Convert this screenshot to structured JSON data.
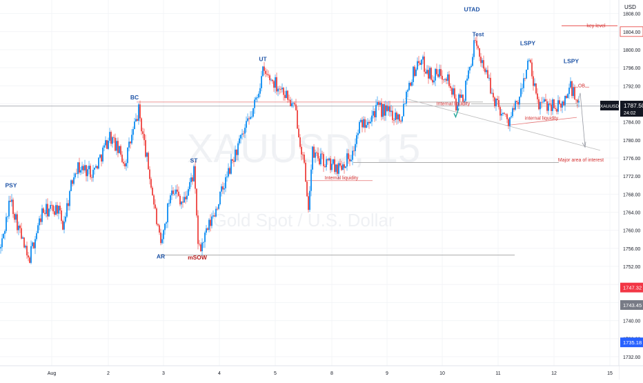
{
  "watermark": {
    "symbol": "XAUUSD, 15",
    "subtitle": "Gold Spot / U.S. Dollar"
  },
  "price_axis": {
    "currency": "USD",
    "ticks": [
      "1808.00",
      "1804.00",
      "1800.00",
      "1796.00",
      "1792.00",
      "1788.00",
      "1784.00",
      "1780.00",
      "1776.00",
      "1772.00",
      "1768.00",
      "1764.00",
      "1760.00",
      "1756.00",
      "1752.00",
      "1748.00",
      "1744.00",
      "1740.00",
      "1736.00",
      "1732.00"
    ],
    "current_label": {
      "symbol": "XAUUSD",
      "price": "1787.50",
      "countdown": "24:02"
    },
    "markers": [
      {
        "value": "1804.00",
        "color": "#e53935",
        "style": "outline"
      },
      {
        "value": "1747.32",
        "color": "#f23645",
        "style": "filled"
      },
      {
        "value": "1743.45",
        "color": "#787b86",
        "style": "filled"
      },
      {
        "value": "1735.18",
        "color": "#2962ff",
        "style": "filled"
      }
    ]
  },
  "time_axis": {
    "ticks": [
      "Aug",
      "2",
      "3",
      "4",
      "5",
      "8",
      "9",
      "10",
      "11",
      "12",
      "15"
    ]
  },
  "chart_data": {
    "type": "candlestick",
    "instrument": "XAUUSD",
    "timeframe": "15",
    "yrange": [
      1730,
      1811
    ],
    "colors": {
      "up": "#2196f3",
      "down": "#ef5350"
    },
    "key_points": [
      {
        "t": 0,
        "price": 1756
      },
      {
        "t": 14,
        "price": 1767
      },
      {
        "t": 40,
        "price": 1753
      },
      {
        "t": 60,
        "price": 1764
      },
      {
        "t": 82,
        "price": 1765
      },
      {
        "t": 90,
        "price": 1761
      },
      {
        "t": 108,
        "price": 1774
      },
      {
        "t": 135,
        "price": 1773
      },
      {
        "t": 158,
        "price": 1781
      },
      {
        "t": 180,
        "price": 1775
      },
      {
        "t": 200,
        "price": 1786.5
      },
      {
        "t": 216,
        "price": 1772
      },
      {
        "t": 232,
        "price": 1756
      },
      {
        "t": 248,
        "price": 1770
      },
      {
        "t": 265,
        "price": 1766
      },
      {
        "t": 280,
        "price": 1773
      },
      {
        "t": 287,
        "price": 1755
      },
      {
        "t": 310,
        "price": 1764
      },
      {
        "t": 340,
        "price": 1777
      },
      {
        "t": 365,
        "price": 1786
      },
      {
        "t": 380,
        "price": 1795
      },
      {
        "t": 410,
        "price": 1791
      },
      {
        "t": 428,
        "price": 1786
      },
      {
        "t": 440,
        "price": 1774
      },
      {
        "t": 445,
        "price": 1764
      },
      {
        "t": 452,
        "price": 1777
      },
      {
        "t": 470,
        "price": 1775
      },
      {
        "t": 490,
        "price": 1774
      },
      {
        "t": 510,
        "price": 1777
      },
      {
        "t": 520,
        "price": 1783
      },
      {
        "t": 545,
        "price": 1787
      },
      {
        "t": 565,
        "price": 1786
      },
      {
        "t": 580,
        "price": 1785
      },
      {
        "t": 590,
        "price": 1792
      },
      {
        "t": 607,
        "price": 1798
      },
      {
        "t": 625,
        "price": 1794
      },
      {
        "t": 645,
        "price": 1795
      },
      {
        "t": 660,
        "price": 1788
      },
      {
        "t": 672,
        "price": 1790
      },
      {
        "t": 686,
        "price": 1801
      },
      {
        "t": 700,
        "price": 1797
      },
      {
        "t": 712,
        "price": 1790
      },
      {
        "t": 735,
        "price": 1784
      },
      {
        "t": 752,
        "price": 1789
      },
      {
        "t": 765,
        "price": 1798
      },
      {
        "t": 778,
        "price": 1788
      },
      {
        "t": 798,
        "price": 1788
      },
      {
        "t": 812,
        "price": 1787
      },
      {
        "t": 826,
        "price": 1792
      },
      {
        "t": 838,
        "price": 1787
      }
    ]
  },
  "annotations": {
    "wyckoff_labels": [
      {
        "text": "PSY",
        "t": 16,
        "price": 1769.5,
        "color": "#1e53a6"
      },
      {
        "text": "BC",
        "t": 195,
        "price": 1789.0,
        "color": "#1e53a6"
      },
      {
        "text": "AR",
        "t": 233,
        "price": 1753.8,
        "color": "#1e53a6"
      },
      {
        "text": "ST",
        "t": 281,
        "price": 1775.0,
        "color": "#1e53a6"
      },
      {
        "text": "mSOW",
        "t": 286,
        "price": 1753.5,
        "color": "#b71c1c"
      },
      {
        "text": "UT",
        "t": 381,
        "price": 1797.5,
        "color": "#1e53a6"
      },
      {
        "text": "UTAD",
        "t": 684,
        "price": 1808.5,
        "color": "#1e53a6"
      },
      {
        "text": "Test",
        "t": 693,
        "price": 1803.0,
        "color": "#1e53a6"
      },
      {
        "text": "LSPY",
        "t": 765,
        "price": 1801.0,
        "color": "#1e53a6"
      },
      {
        "text": "LSPY",
        "t": 828,
        "price": 1797.0,
        "color": "#1e53a6"
      }
    ],
    "texts": [
      {
        "text": "key level",
        "t": 864,
        "price": 1805.0,
        "color": "#d32f2f"
      },
      {
        "text": "OB",
        "t": 843,
        "price": 1791.7,
        "color": "#d32f2f"
      },
      {
        "text": "Internal liquidity",
        "t": 657,
        "price": 1787.7,
        "color": "#d32f2f"
      },
      {
        "text": "internal liquidity",
        "t": 785,
        "price": 1784.5,
        "color": "#d32f2f"
      },
      {
        "text": "Internal liquidity",
        "t": 495,
        "price": 1771.3,
        "color": "#d32f2f"
      },
      {
        "text": "Major area of interest",
        "t": 842,
        "price": 1775.2,
        "color": "#d32f2f"
      }
    ]
  }
}
